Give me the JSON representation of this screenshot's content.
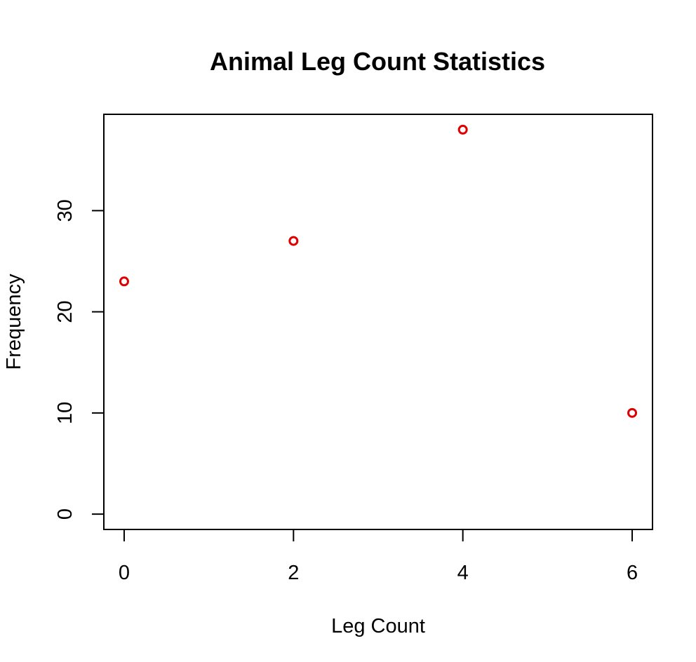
{
  "chart_data": {
    "type": "scatter",
    "title": "Animal Leg Count Statistics",
    "xlabel": "Leg Count",
    "ylabel": "Frequency",
    "x": [
      0,
      2,
      4,
      6
    ],
    "y": [
      23,
      27,
      38,
      10
    ],
    "xlim": [
      -0.24,
      6.24
    ],
    "ylim": [
      -1.52,
      39.52
    ],
    "xticks": [
      0,
      2,
      4,
      6
    ],
    "yticks": [
      0,
      10,
      20,
      30
    ],
    "xtick_labels": [
      "0",
      "2",
      "4",
      "6"
    ],
    "ytick_labels": [
      "0",
      "10",
      "20",
      "30"
    ],
    "marker": "open-circle",
    "marker_color": "#e00000",
    "grid": false,
    "legend": "none"
  }
}
